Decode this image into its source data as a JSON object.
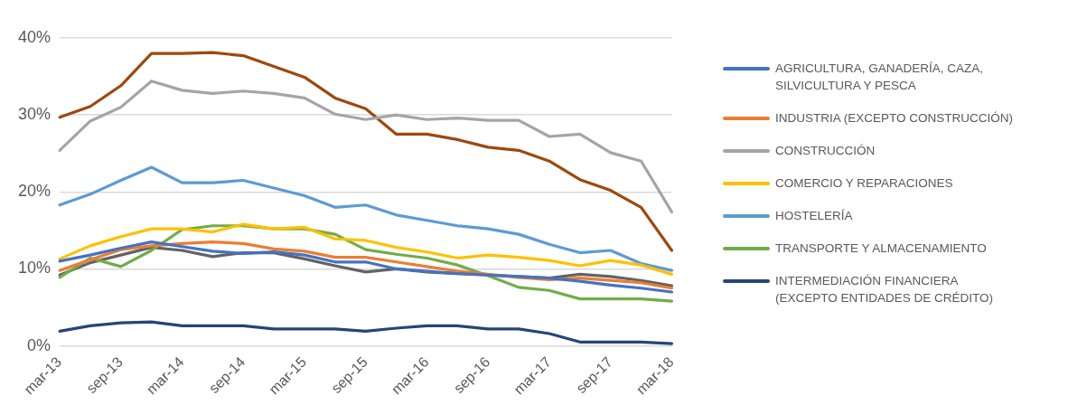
{
  "chart_data": {
    "type": "line",
    "categories": [
      "mar-13",
      null,
      "sep-13",
      null,
      "mar-14",
      null,
      "sep-14",
      null,
      "mar-15",
      null,
      "sep-15",
      null,
      "mar-16",
      null,
      "sep-16",
      null,
      "mar-17",
      null,
      "sep-17",
      null,
      "mar-18"
    ],
    "series": [
      {
        "name": "AGRICULTURA, GANADERÍA, CAZA, SILVICULTURA Y PESCA",
        "color": "#4472c4",
        "values": [
          11.0,
          11.8,
          12.7,
          13.5,
          12.9,
          12.3,
          12.0,
          12.2,
          11.8,
          10.9,
          10.9,
          10.0,
          9.7,
          9.4,
          9.2,
          9.0,
          8.8,
          8.4,
          7.9,
          7.5,
          7.0
        ]
      },
      {
        "name": "INDUSTRIA (EXCEPTO CONSTRUCCIÓN)",
        "color": "#ed7d31",
        "values": [
          9.8,
          11.2,
          12.5,
          13.0,
          13.3,
          13.5,
          13.3,
          12.6,
          12.3,
          11.5,
          11.5,
          10.9,
          10.3,
          9.7,
          9.3,
          8.9,
          8.6,
          8.8,
          8.5,
          8.2,
          7.5
        ]
      },
      {
        "name": "CONSTRUCCIÓN",
        "color": "#a5a5a5",
        "values": [
          25.4,
          29.2,
          31.0,
          34.4,
          33.2,
          32.8,
          33.1,
          32.8,
          32.2,
          30.1,
          29.4,
          30.0,
          29.4,
          29.6,
          29.3,
          29.3,
          27.2,
          27.5,
          25.1,
          24.0,
          17.4
        ]
      },
      {
        "name": "COMERCIO Y REPARACIONES",
        "color": "#ffc000",
        "values": [
          11.3,
          13.0,
          14.2,
          15.2,
          15.2,
          14.8,
          15.8,
          15.2,
          15.4,
          13.9,
          13.7,
          12.8,
          12.2,
          11.4,
          11.8,
          11.5,
          11.1,
          10.4,
          11.1,
          10.5,
          9.3
        ]
      },
      {
        "name": "HOSTELERÍA",
        "color": "#5b9bd5",
        "values": [
          18.3,
          19.7,
          21.5,
          23.2,
          21.2,
          21.2,
          21.5,
          20.5,
          19.5,
          18.0,
          18.3,
          17.0,
          16.3,
          15.6,
          15.2,
          14.5,
          13.2,
          12.1,
          12.4,
          10.7,
          9.8
        ]
      },
      {
        "name": "TRANSPORTE Y ALMACENAMIENTO",
        "color": "#70ad47",
        "values": [
          8.9,
          11.4,
          10.3,
          12.4,
          15.1,
          15.6,
          15.6,
          15.2,
          15.2,
          14.5,
          12.5,
          11.9,
          11.4,
          10.5,
          9.1,
          7.6,
          7.2,
          6.1,
          6.1,
          6.1,
          5.8
        ]
      },
      {
        "name": "INTERMEDIACIÓN FINANCIERA (EXCEPTO ENTIDADES DE CRÉDITO)",
        "color": "#264478",
        "values": [
          1.9,
          2.6,
          3.0,
          3.1,
          2.6,
          2.6,
          2.6,
          2.2,
          2.2,
          2.2,
          1.9,
          2.3,
          2.6,
          2.6,
          2.2,
          2.2,
          1.6,
          0.5,
          0.5,
          0.5,
          0.3
        ]
      },
      {
        "color": "#9e480e",
        "values": [
          29.7,
          31.1,
          33.8,
          38.0,
          38.0,
          38.1,
          37.7,
          36.3,
          34.9,
          32.2,
          30.8,
          27.5,
          27.5,
          26.8,
          25.8,
          25.4,
          24.0,
          21.6,
          20.2,
          18.0,
          12.4
        ]
      },
      {
        "color": "#636363",
        "values": [
          9.2,
          10.8,
          11.8,
          12.8,
          12.4,
          11.6,
          12.1,
          12.1,
          11.3,
          10.4,
          9.6,
          10.0,
          9.6,
          9.4,
          9.2,
          9.0,
          8.8,
          9.3,
          9.0,
          8.5,
          7.8
        ]
      }
    ],
    "ylim": [
      0,
      40
    ],
    "yticks": [
      {
        "value": 0,
        "label": "0%"
      },
      {
        "value": 10,
        "label": "10%"
      },
      {
        "value": 20,
        "label": "20%"
      },
      {
        "value": 30,
        "label": "30%"
      },
      {
        "value": 40,
        "label": "40%"
      }
    ],
    "grid": "y",
    "legend": "right",
    "marker": "none",
    "line_style": "solid"
  }
}
